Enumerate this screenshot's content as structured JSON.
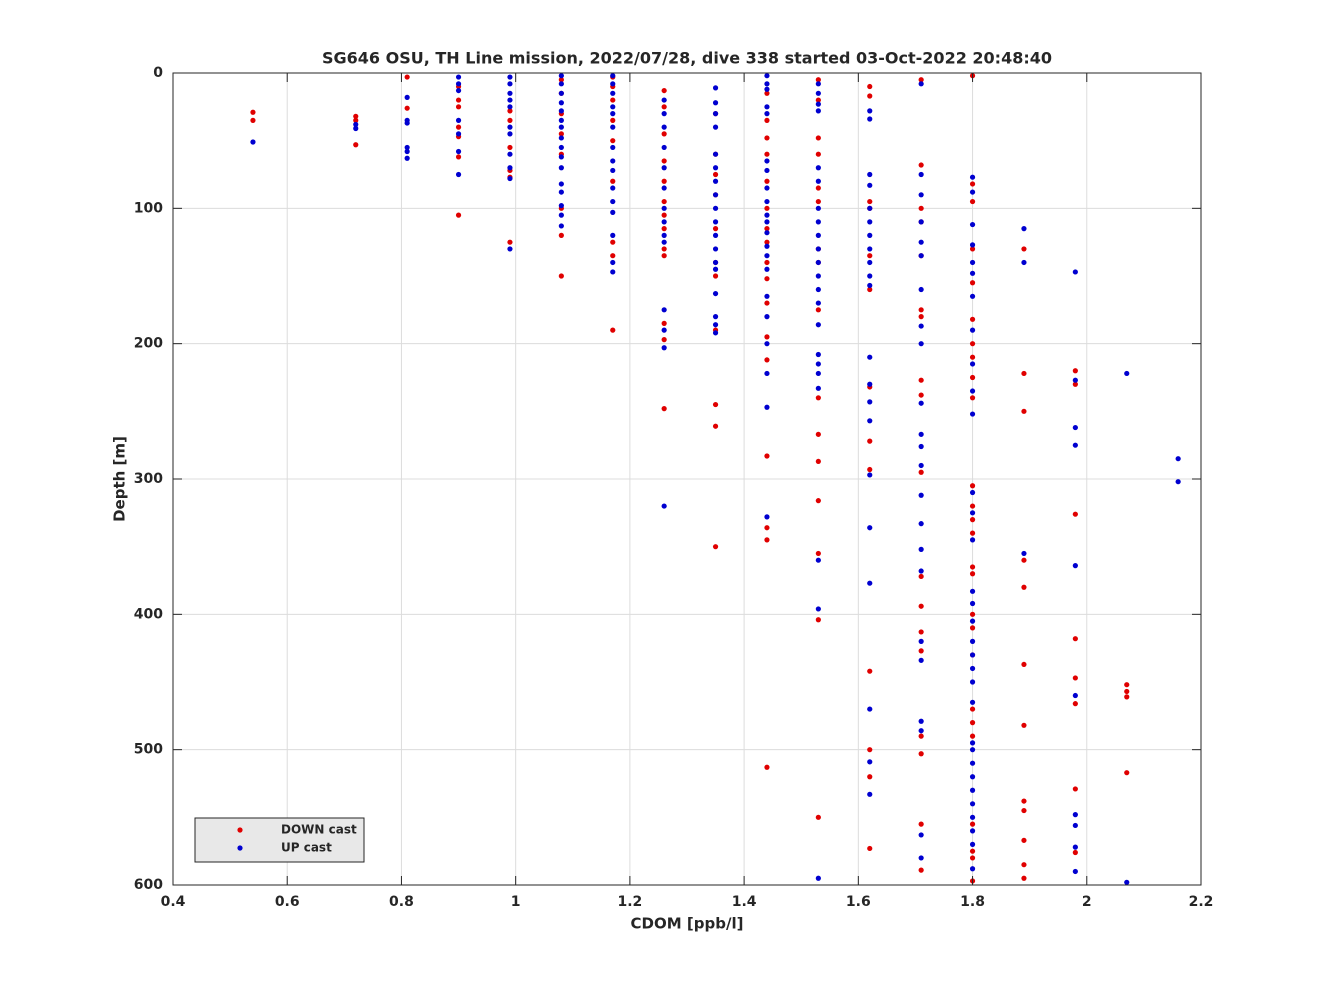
{
  "chart_data": {
    "type": "scatter",
    "title": "SG646 OSU, TH Line mission, 2022/07/28, dive 338 started 03-Oct-2022 20:48:40",
    "xlabel": "CDOM [ppb/l]",
    "ylabel": "Depth [m]",
    "xlim": [
      0.4,
      2.2
    ],
    "xticks": [
      0.4,
      0.6,
      0.8,
      1,
      1.2,
      1.4,
      1.6,
      1.8,
      2,
      2.2
    ],
    "ylim": [
      0,
      600
    ],
    "yticks": [
      0,
      100,
      200,
      300,
      400,
      500,
      600
    ],
    "y_reversed": true,
    "grid": true,
    "legend": "southwest",
    "series": [
      {
        "name": "DOWN cast",
        "color": "#e00000",
        "x": [
          0.54,
          0.54,
          0.72,
          0.72,
          0.72,
          0.81,
          0.81,
          0.9,
          0.9,
          0.9,
          0.9,
          0.9,
          0.9,
          0.9,
          0.99,
          0.99,
          0.99,
          0.99,
          0.99,
          0.99,
          1.08,
          1.08,
          1.08,
          1.08,
          1.08,
          1.08,
          1.08,
          1.08,
          1.17,
          1.17,
          1.17,
          1.17,
          1.17,
          1.17,
          1.17,
          1.17,
          1.17,
          1.26,
          1.26,
          1.26,
          1.26,
          1.26,
          1.26,
          1.26,
          1.26,
          1.26,
          1.26,
          1.26,
          1.26,
          1.26,
          1.35,
          1.35,
          1.35,
          1.35,
          1.35,
          1.35,
          1.35,
          1.35,
          1.35,
          1.35,
          1.35,
          1.44,
          1.44,
          1.44,
          1.44,
          1.44,
          1.44,
          1.44,
          1.44,
          1.44,
          1.44,
          1.44,
          1.44,
          1.44,
          1.44,
          1.44,
          1.44,
          1.44,
          1.53,
          1.53,
          1.53,
          1.53,
          1.53,
          1.53,
          1.53,
          1.53,
          1.53,
          1.53,
          1.53,
          1.53,
          1.53,
          1.53,
          1.53,
          1.53,
          1.62,
          1.62,
          1.62,
          1.62,
          1.62,
          1.62,
          1.62,
          1.62,
          1.62,
          1.62,
          1.62,
          1.62,
          1.62,
          1.71,
          1.71,
          1.71,
          1.71,
          1.71,
          1.71,
          1.71,
          1.71,
          1.71,
          1.71,
          1.71,
          1.71,
          1.71,
          1.71,
          1.71,
          1.71,
          1.71,
          1.71,
          1.8,
          1.8,
          1.8,
          1.8,
          1.8,
          1.8,
          1.8,
          1.8,
          1.8,
          1.8,
          1.8,
          1.8,
          1.8,
          1.8,
          1.8,
          1.8,
          1.8,
          1.8,
          1.8,
          1.8,
          1.8,
          1.8,
          1.8,
          1.8,
          1.8,
          1.8,
          1.89,
          1.89,
          1.89,
          1.89,
          1.89,
          1.89,
          1.89,
          1.89,
          1.89,
          1.89,
          1.89,
          1.89,
          1.98,
          1.98,
          1.98,
          1.98,
          1.98,
          1.98,
          1.98,
          1.98,
          2.07,
          2.07,
          2.07,
          2.07
        ],
        "values": [
          29,
          35,
          32,
          35,
          53,
          3,
          26,
          10,
          20,
          25,
          40,
          47,
          62,
          105,
          28,
          35,
          55,
          72,
          77,
          125,
          5,
          15,
          30,
          45,
          60,
          100,
          120,
          150,
          3,
          10,
          20,
          35,
          50,
          80,
          125,
          135,
          190,
          13,
          25,
          45,
          65,
          80,
          95,
          105,
          115,
          130,
          135,
          185,
          197,
          248,
          30,
          60,
          75,
          90,
          115,
          140,
          150,
          190,
          245,
          261,
          350,
          15,
          35,
          48,
          60,
          80,
          100,
          115,
          125,
          140,
          152,
          170,
          195,
          212,
          283,
          336,
          345,
          513,
          5,
          20,
          48,
          60,
          85,
          95,
          130,
          140,
          175,
          240,
          267,
          287,
          316,
          355,
          404,
          550,
          10,
          17,
          95,
          100,
          135,
          160,
          232,
          272,
          293,
          442,
          500,
          520,
          573,
          5,
          68,
          100,
          110,
          135,
          175,
          180,
          227,
          238,
          295,
          372,
          394,
          413,
          427,
          490,
          503,
          555,
          589,
          2,
          82,
          95,
          130,
          155,
          182,
          200,
          210,
          225,
          240,
          305,
          320,
          330,
          340,
          365,
          370,
          400,
          410,
          430,
          470,
          480,
          490,
          555,
          575,
          580,
          597,
          130,
          222,
          250,
          360,
          380,
          437,
          482,
          538,
          545,
          567,
          585,
          595,
          220,
          230,
          326,
          418,
          447,
          466,
          529,
          576,
          452,
          457,
          461,
          517
        ]
      },
      {
        "name": "UP cast",
        "color": "#0000d0",
        "x": [
          0.54,
          0.72,
          0.72,
          0.81,
          0.81,
          0.81,
          0.81,
          0.81,
          0.81,
          0.9,
          0.9,
          0.9,
          0.9,
          0.9,
          0.9,
          0.9,
          0.99,
          0.99,
          0.99,
          0.99,
          0.99,
          0.99,
          0.99,
          0.99,
          0.99,
          0.99,
          0.99,
          1.08,
          1.08,
          1.08,
          1.08,
          1.08,
          1.08,
          1.08,
          1.08,
          1.08,
          1.08,
          1.08,
          1.08,
          1.08,
          1.08,
          1.08,
          1.08,
          1.17,
          1.17,
          1.17,
          1.17,
          1.17,
          1.17,
          1.17,
          1.17,
          1.17,
          1.17,
          1.17,
          1.17,
          1.17,
          1.17,
          1.17,
          1.26,
          1.26,
          1.26,
          1.26,
          1.26,
          1.26,
          1.26,
          1.26,
          1.26,
          1.26,
          1.26,
          1.26,
          1.26,
          1.26,
          1.35,
          1.35,
          1.35,
          1.35,
          1.35,
          1.35,
          1.35,
          1.35,
          1.35,
          1.35,
          1.35,
          1.35,
          1.35,
          1.35,
          1.35,
          1.35,
          1.35,
          1.35,
          1.44,
          1.44,
          1.44,
          1.44,
          1.44,
          1.44,
          1.44,
          1.44,
          1.44,
          1.44,
          1.44,
          1.44,
          1.44,
          1.44,
          1.44,
          1.44,
          1.44,
          1.44,
          1.44,
          1.44,
          1.44,
          1.53,
          1.53,
          1.53,
          1.53,
          1.53,
          1.53,
          1.53,
          1.53,
          1.53,
          1.53,
          1.53,
          1.53,
          1.53,
          1.53,
          1.53,
          1.53,
          1.53,
          1.53,
          1.53,
          1.53,
          1.53,
          1.53,
          1.62,
          1.62,
          1.62,
          1.62,
          1.62,
          1.62,
          1.62,
          1.62,
          1.62,
          1.62,
          1.62,
          1.62,
          1.62,
          1.62,
          1.62,
          1.62,
          1.62,
          1.62,
          1.62,
          1.62,
          1.62,
          1.71,
          1.71,
          1.71,
          1.71,
          1.71,
          1.71,
          1.71,
          1.71,
          1.71,
          1.71,
          1.71,
          1.71,
          1.71,
          1.71,
          1.71,
          1.71,
          1.71,
          1.71,
          1.71,
          1.71,
          1.71,
          1.71,
          1.71,
          1.8,
          1.8,
          1.8,
          1.8,
          1.8,
          1.8,
          1.8,
          1.8,
          1.8,
          1.8,
          1.8,
          1.8,
          1.8,
          1.8,
          1.8,
          1.8,
          1.8,
          1.8,
          1.8,
          1.8,
          1.8,
          1.8,
          1.8,
          1.8,
          1.8,
          1.8,
          1.8,
          1.8,
          1.8,
          1.8,
          1.8,
          1.8,
          1.89,
          1.89,
          1.89,
          1.98,
          1.98,
          1.98,
          1.98,
          1.98,
          1.98,
          1.98,
          1.98,
          1.98,
          1.98,
          2.07,
          2.07,
          2.16,
          2.16
        ],
        "values": [
          51,
          38,
          41,
          18,
          35,
          37,
          55,
          58,
          63,
          3,
          8,
          13,
          35,
          45,
          58,
          75,
          3,
          8,
          15,
          20,
          25,
          40,
          45,
          60,
          70,
          78,
          130,
          2,
          8,
          15,
          22,
          28,
          35,
          40,
          48,
          55,
          62,
          70,
          82,
          88,
          98,
          105,
          113,
          2,
          8,
          15,
          25,
          30,
          40,
          55,
          65,
          72,
          85,
          95,
          103,
          120,
          140,
          147,
          20,
          30,
          40,
          55,
          70,
          85,
          100,
          110,
          120,
          125,
          175,
          190,
          203,
          320,
          11,
          22,
          30,
          40,
          60,
          70,
          80,
          90,
          100,
          110,
          120,
          130,
          140,
          145,
          163,
          180,
          186,
          192,
          2,
          8,
          12,
          25,
          30,
          65,
          72,
          85,
          95,
          105,
          110,
          118,
          128,
          135,
          145,
          165,
          180,
          200,
          222,
          247,
          328,
          8,
          15,
          23,
          28,
          70,
          80,
          100,
          110,
          120,
          130,
          140,
          150,
          160,
          170,
          186,
          208,
          215,
          222,
          233,
          360,
          396,
          595,
          28,
          34,
          75,
          83,
          100,
          110,
          120,
          130,
          140,
          150,
          157,
          210,
          230,
          243,
          257,
          297,
          336,
          377,
          470,
          509,
          533,
          8,
          75,
          90,
          110,
          125,
          135,
          160,
          187,
          200,
          244,
          267,
          276,
          290,
          312,
          333,
          352,
          368,
          420,
          434,
          479,
          486,
          563,
          580,
          77,
          88,
          112,
          127,
          140,
          148,
          165,
          190,
          215,
          235,
          252,
          310,
          325,
          345,
          383,
          392,
          405,
          420,
          430,
          440,
          450,
          465,
          495,
          500,
          510,
          520,
          530,
          540,
          550,
          560,
          570,
          588,
          115,
          140,
          355,
          147,
          227,
          262,
          275,
          364,
          460,
          548,
          556,
          572,
          590,
          222,
          598,
          285,
          302
        ]
      }
    ]
  }
}
